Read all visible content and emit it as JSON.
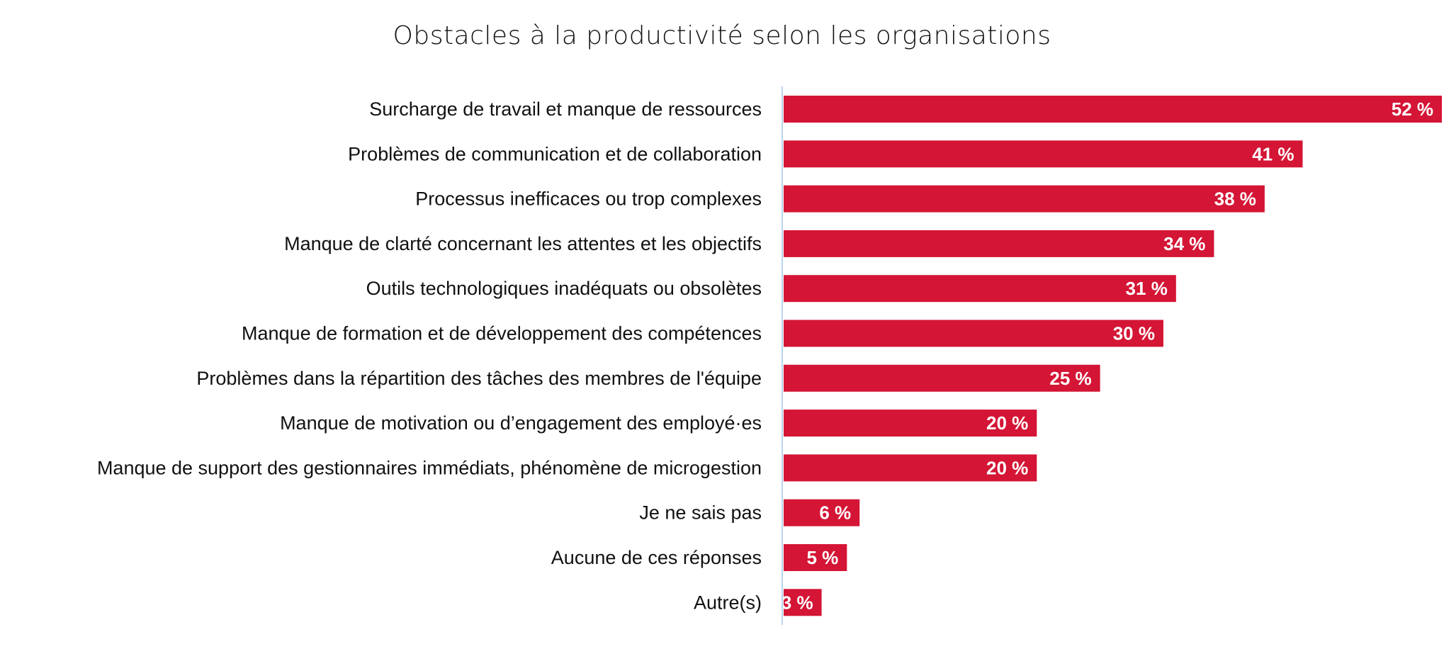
{
  "chart_data": {
    "type": "bar",
    "orientation": "horizontal",
    "title": "Obstacles à la productivité selon les organisations",
    "categories": [
      "Surcharge de travail et manque de ressources",
      "Problèmes de communication et de collaboration",
      "Processus inefficaces ou trop complexes",
      "Manque de clarté concernant les attentes et les objectifs",
      "Outils technologiques inadéquats ou obsolètes",
      "Manque de formation et de développement des compétences",
      "Problèmes dans la répartition des tâches des membres de l'équipe",
      "Manque de motivation ou d’engagement des employé·es",
      "Manque de support des gestionnaires immédiats, phénomène de microgestion",
      "Je ne sais pas",
      "Aucune de ces réponses",
      "Autre(s)"
    ],
    "values": [
      52,
      41,
      38,
      34,
      31,
      30,
      25,
      20,
      20,
      6,
      5,
      3
    ],
    "value_labels": [
      "52 %",
      "41 %",
      "38 %",
      "34 %",
      "31 %",
      "30 %",
      "25 %",
      "20 %",
      "20 %",
      "6 %",
      "5 %",
      "3 %"
    ],
    "unit": "%",
    "xlim": [
      0,
      52
    ],
    "grid": false,
    "legend": "none",
    "colors": {
      "bar": "#D41535",
      "axis": "#BCD4F0",
      "value_text": "#FFFFFF"
    }
  }
}
